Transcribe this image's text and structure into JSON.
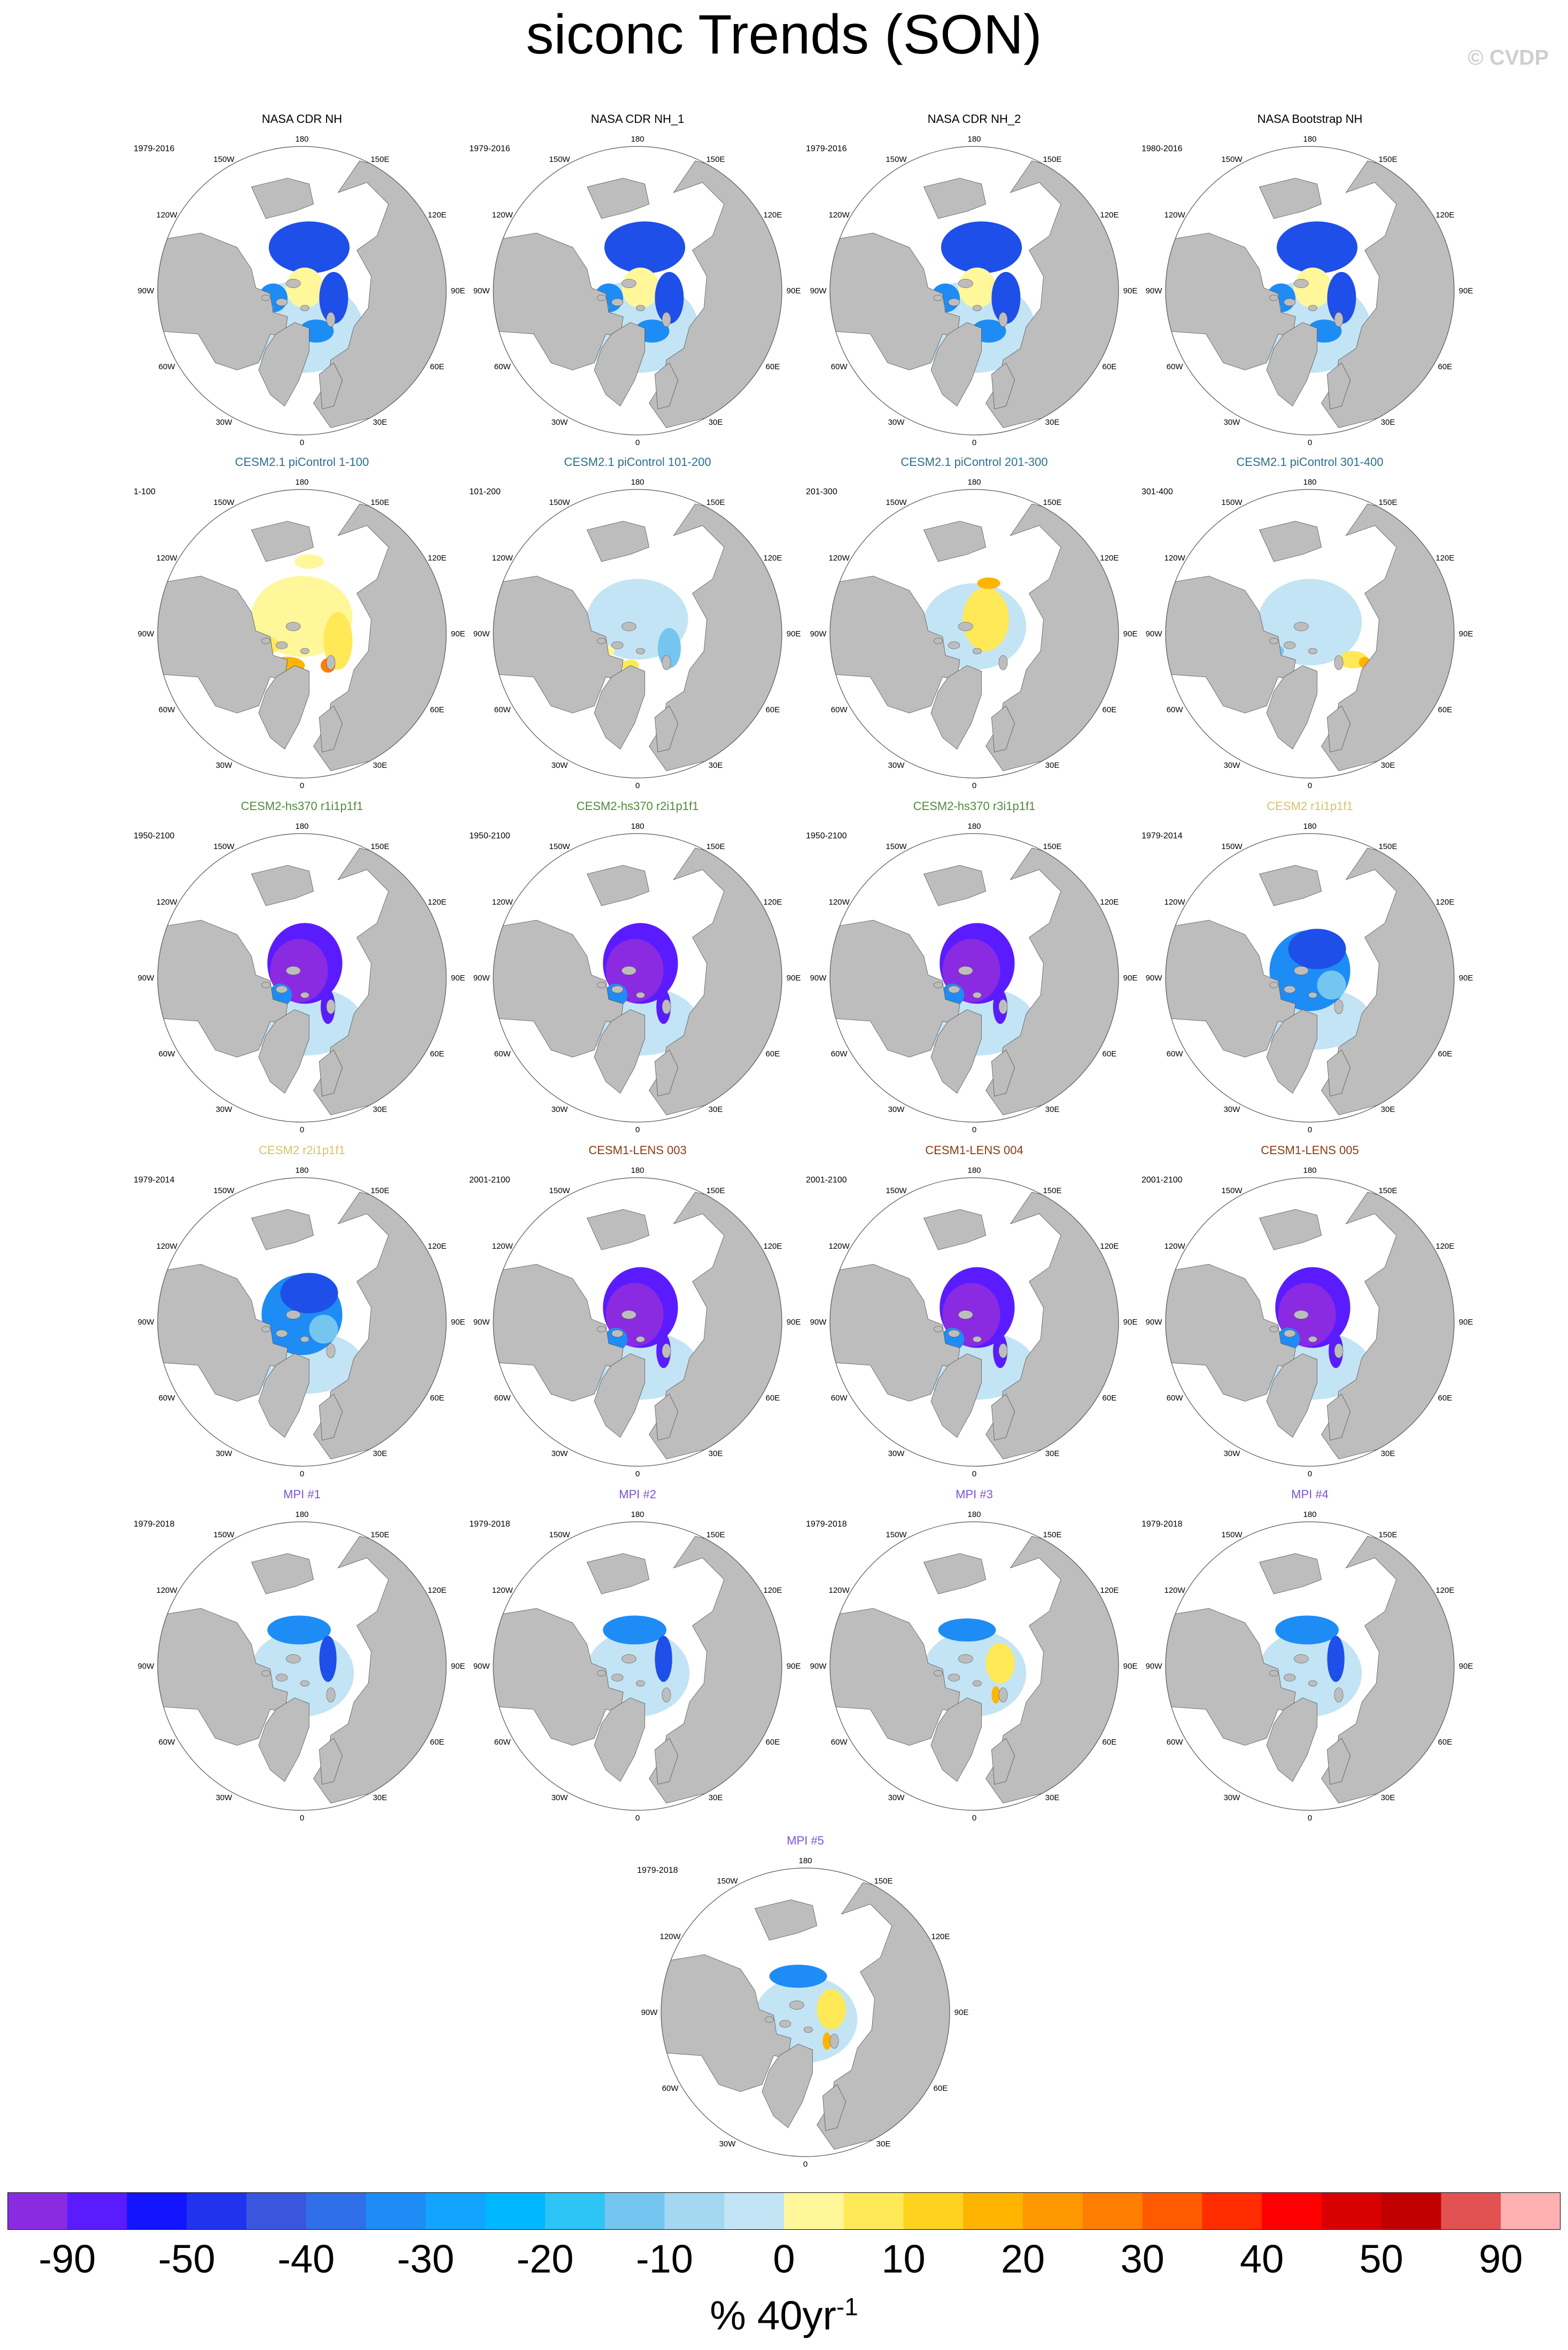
{
  "title": "siconc Trends (SON)",
  "watermark": "© CVDP",
  "colorbar": {
    "colors": [
      "#8a2be2",
      "#5a1cff",
      "#1414ff",
      "#2233ee",
      "#3a56dd",
      "#2f6fe8",
      "#1e8cf5",
      "#12a4ff",
      "#00b8ff",
      "#2ec4f5",
      "#74c6f0",
      "#a5d8f0",
      "#c3e4f4",
      "#fff79a",
      "#ffe957",
      "#ffd21f",
      "#ffb400",
      "#ff9800",
      "#ff7d00",
      "#ff5a00",
      "#ff2d00",
      "#ff0000",
      "#d80000",
      "#c00000",
      "#e35252",
      "#ffb0b0"
    ],
    "tick_labels": [
      "-90",
      "-50",
      "-40",
      "-30",
      "-20",
      "-10",
      "0",
      "10",
      "20",
      "30",
      "40",
      "50",
      "90"
    ],
    "units_base": "% 40yr",
    "units_exp": "-1"
  },
  "lon_labels": [
    "180",
    "150E",
    "120E",
    "90E",
    "60E",
    "30E",
    "0",
    "30W",
    "60W",
    "90W",
    "120W",
    "150W"
  ],
  "colors": {
    "land": "#bdbdbd",
    "ocean": "#ffffff",
    "obs_title": "#000000",
    "cesm21_title": "#2a6f8f",
    "hs370_title": "#4d8b3a",
    "cesm2_title": "#d9c26a",
    "lens_title": "#8b3a0f",
    "mpi_title": "#7b52d6"
  },
  "panels": [
    {
      "title": "NASA CDR NH",
      "years": "1979-2016",
      "group": "obs",
      "pattern": "obs"
    },
    {
      "title": "NASA CDR NH_1",
      "years": "1979-2016",
      "group": "obs",
      "pattern": "obs"
    },
    {
      "title": "NASA CDR NH_2",
      "years": "1979-2016",
      "group": "obs",
      "pattern": "obs"
    },
    {
      "title": "NASA Bootstrap NH",
      "years": "1980-2016",
      "group": "obs",
      "pattern": "obs"
    },
    {
      "title": "CESM2.1 piControl 1-100",
      "years": "1-100",
      "group": "cesm21",
      "pattern": "ctl_pos"
    },
    {
      "title": "CESM2.1 piControl 101-200",
      "years": "101-200",
      "group": "cesm21",
      "pattern": "ctl_mix"
    },
    {
      "title": "CESM2.1 piControl 201-300",
      "years": "201-300",
      "group": "cesm21",
      "pattern": "ctl_mix2"
    },
    {
      "title": "CESM2.1 piControl 301-400",
      "years": "301-400",
      "group": "cesm21",
      "pattern": "ctl_neg"
    },
    {
      "title": "CESM2-hs370 r1i1p1f1",
      "years": "1950-2100",
      "group": "hs370",
      "pattern": "strong"
    },
    {
      "title": "CESM2-hs370 r2i1p1f1",
      "years": "1950-2100",
      "group": "hs370",
      "pattern": "strong"
    },
    {
      "title": "CESM2-hs370 r3i1p1f1",
      "years": "1950-2100",
      "group": "hs370",
      "pattern": "strong"
    },
    {
      "title": "CESM2 r1i1p1f1",
      "years": "1979-2014",
      "group": "cesm2",
      "pattern": "moderate"
    },
    {
      "title": "CESM2 r2i1p1f1",
      "years": "1979-2014",
      "group": "cesm2",
      "pattern": "moderate"
    },
    {
      "title": "CESM1-LENS 003",
      "years": "2001-2100",
      "group": "lens",
      "pattern": "strong"
    },
    {
      "title": "CESM1-LENS 004",
      "years": "2001-2100",
      "group": "lens",
      "pattern": "strong"
    },
    {
      "title": "CESM1-LENS 005",
      "years": "2001-2100",
      "group": "lens",
      "pattern": "strong"
    },
    {
      "title": "MPI #1",
      "years": "1979-2018",
      "group": "mpi",
      "pattern": "light"
    },
    {
      "title": "MPI #2",
      "years": "1979-2018",
      "group": "mpi",
      "pattern": "light"
    },
    {
      "title": "MPI #3",
      "years": "1979-2018",
      "group": "mpi",
      "pattern": "light_pos"
    },
    {
      "title": "MPI #4",
      "years": "1979-2018",
      "group": "mpi",
      "pattern": "light"
    },
    {
      "title": "MPI #5",
      "years": "1979-2018",
      "group": "mpi",
      "pattern": "light_pos"
    }
  ]
}
